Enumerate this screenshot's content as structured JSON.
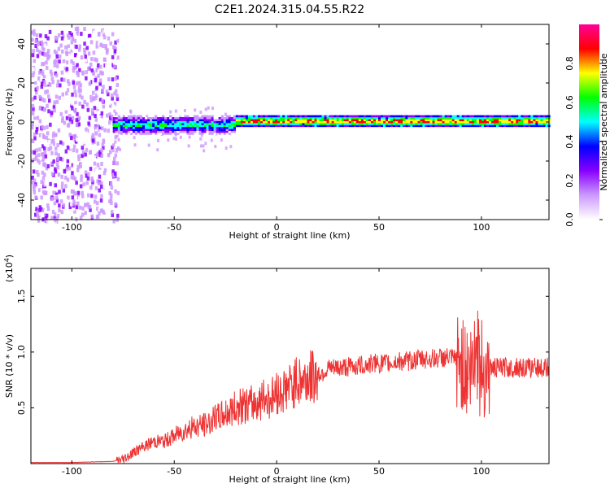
{
  "figure": {
    "title": "C2E1.2024.315.04.55.R22"
  },
  "chart_data": [
    {
      "type": "heatmap",
      "xlabel": "Height of straight line (km)",
      "ylabel": "Frequency (Hz)",
      "xlim": [
        -120,
        133
      ],
      "ylim": [
        -50,
        50
      ],
      "xticks": [
        -100,
        -50,
        0,
        50,
        100
      ],
      "yticks": [
        -40,
        -20,
        0,
        20,
        40
      ],
      "colorbar": {
        "label": "Normalized spectral amplitude",
        "range": [
          0.0,
          1.0
        ],
        "ticks": [
          "0.0",
          "0.2",
          "0.4",
          "0.6",
          "0.8"
        ],
        "colors": [
          "#ffffff",
          "#cc99ff",
          "#8800ff",
          "#0000ff",
          "#00ffff",
          "#00ff00",
          "#ffff00",
          "#ff0000",
          "#ff0099"
        ]
      },
      "regions": [
        {
          "x": [
            -120,
            -80
          ],
          "frequency": [
            -50,
            48
          ],
          "amplitude": "low, scattered noise"
        },
        {
          "x": [
            -80,
            -20
          ],
          "frequency": [
            -8,
            6
          ],
          "amplitude": "mixed, band near 0 Hz"
        },
        {
          "x": [
            -20,
            133
          ],
          "frequency": [
            -2,
            2
          ],
          "amplitude": "peak, narrow band at ~1 Hz"
        }
      ]
    },
    {
      "type": "line",
      "xlabel": "Height of straight line (km)",
      "ylabel": "SNR (10 * v/v)",
      "multiplier": "(x10",
      "multiplier_exp": "4",
      "multiplier_close": ")",
      "xlim": [
        -120,
        133
      ],
      "ylim": [
        0,
        1.75
      ],
      "xticks": [
        -100,
        -50,
        0,
        50,
        100
      ],
      "yticks": [
        0.5,
        1.0,
        1.5
      ],
      "ytick_labels": [
        "0.5",
        "1.0",
        "1.5"
      ],
      "series": [
        {
          "color": "#ee3333",
          "x": [
            -120,
            -100,
            -80,
            -75,
            -70,
            -65,
            -60,
            -55,
            -50,
            -45,
            -40,
            -35,
            -30,
            -25,
            -20,
            -15,
            -10,
            -5,
            0,
            5,
            10,
            15,
            20,
            25,
            30,
            35,
            40,
            45,
            50,
            55,
            60,
            65,
            70,
            75,
            80,
            85,
            90,
            93,
            95,
            97,
            100,
            103,
            105,
            110,
            115,
            120,
            125,
            133
          ],
          "values": [
            0.01,
            0.01,
            0.02,
            0.04,
            0.1,
            0.15,
            0.2,
            0.2,
            0.25,
            0.3,
            0.33,
            0.35,
            0.4,
            0.45,
            0.5,
            0.52,
            0.55,
            0.58,
            0.62,
            0.68,
            0.73,
            0.77,
            0.8,
            0.84,
            0.86,
            0.87,
            0.88,
            0.89,
            0.9,
            0.9,
            0.92,
            0.92,
            0.94,
            0.94,
            0.95,
            0.95,
            0.92,
            0.85,
            0.85,
            0.86,
            0.86,
            0.86,
            0.86,
            0.86,
            0.86,
            0.86,
            0.86,
            0.86
          ]
        }
      ],
      "annotations": [
        {
          "x": 97.5,
          "y": 1.72,
          "text": ""
        }
      ]
    }
  ]
}
